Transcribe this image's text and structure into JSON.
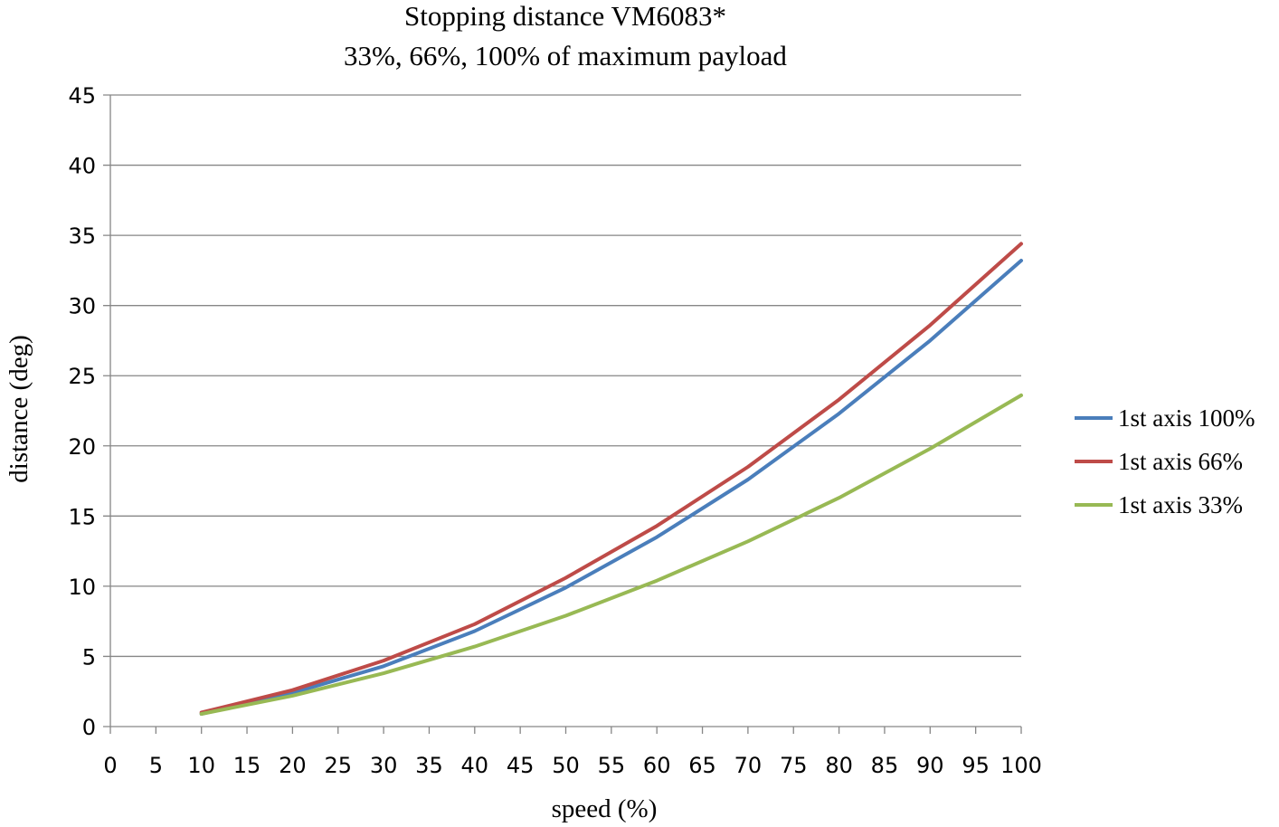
{
  "chart_data": {
    "type": "line",
    "title": "Stopping distance VM6083*",
    "subtitle": "33%, 66%, 100% of maximum payload",
    "xlabel": "speed (%)",
    "ylabel": "distance (deg)",
    "xlim": [
      0,
      100
    ],
    "ylim": [
      0,
      45
    ],
    "x_ticks": [
      0,
      5,
      10,
      15,
      20,
      25,
      30,
      35,
      40,
      45,
      50,
      55,
      60,
      65,
      70,
      75,
      80,
      85,
      90,
      95,
      100
    ],
    "y_ticks": [
      0,
      5,
      10,
      15,
      20,
      25,
      30,
      35,
      40,
      45
    ],
    "grid": "horizontal",
    "legend_position": "right",
    "x": [
      10,
      20,
      30,
      40,
      50,
      60,
      70,
      80,
      90,
      100
    ],
    "series": [
      {
        "name": "1st axis 100%",
        "color": "#4a7ebb",
        "values": [
          0.9,
          2.4,
          4.3,
          6.8,
          9.9,
          13.5,
          17.6,
          22.3,
          27.5,
          33.2
        ]
      },
      {
        "name": "1st axis 66%",
        "color": "#be4b48",
        "values": [
          1.0,
          2.6,
          4.7,
          7.3,
          10.6,
          14.3,
          18.5,
          23.3,
          28.6,
          34.4
        ]
      },
      {
        "name": "1st axis 33%",
        "color": "#98b954",
        "values": [
          0.9,
          2.2,
          3.8,
          5.7,
          7.9,
          10.4,
          13.2,
          16.3,
          19.8,
          23.6
        ]
      }
    ]
  }
}
